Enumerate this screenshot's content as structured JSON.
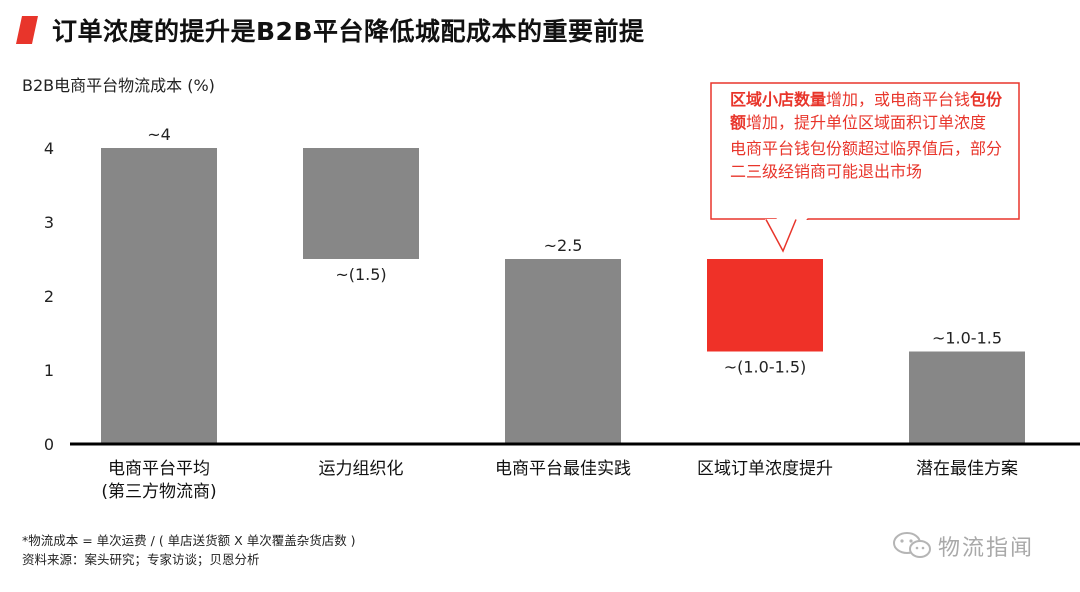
{
  "header": {
    "title": "订单浓度的提升是B2B平台降低城配成本的重要前提"
  },
  "callout": {
    "line1_highlight": "区域小店数量",
    "line1_rest": "增加，或电商平台钱",
    "line2_highlight": "包份额",
    "line2_rest": "增加，提升单位区域面积订单浓度",
    "paragraph2": "电商平台钱包份额超过临界值后，部分二三级经销商可能退出市场"
  },
  "footnotes": {
    "definition": "*物流成本 = 单次运费 / ( 单店送货额 X 单次覆盖杂货店数 )",
    "source": "资料来源：案头研究；专家访谈；贝恩分析"
  },
  "watermark": {
    "text": "物流指闻"
  },
  "colors": {
    "bar_gray": "#878787",
    "bar_highlight": "#ef3128",
    "accent_red": "#e8352b",
    "axis": "#000000"
  },
  "chart_data": {
    "type": "bar",
    "subtype": "waterfall",
    "ylabel": "B2B电商平台物流成本 (%)",
    "ylim": [
      0,
      4
    ],
    "yticks": [
      "0",
      "1",
      "2",
      "3",
      "4"
    ],
    "grid": false,
    "categories": [
      [
        "电商平台平均",
        "(第三方物流商)"
      ],
      [
        "运力组织化"
      ],
      [
        "电商平台最佳实践"
      ],
      [
        "区域订单浓度提升"
      ],
      [
        "潜在最佳方案"
      ]
    ],
    "bars": [
      {
        "bottom": 0,
        "top": 4,
        "label": "~4",
        "label_pos": "above",
        "highlight": false
      },
      {
        "bottom": 2.5,
        "top": 4,
        "label": "~(1.5)",
        "label_pos": "below",
        "highlight": false
      },
      {
        "bottom": 0,
        "top": 2.5,
        "label": "~2.5",
        "label_pos": "above",
        "highlight": false
      },
      {
        "bottom": 1.25,
        "top": 2.5,
        "label": "~(1.0-1.5)",
        "label_pos": "below",
        "highlight": true
      },
      {
        "bottom": 0,
        "top": 1.25,
        "label": "~1.0-1.5",
        "label_pos": "above",
        "highlight": false
      }
    ]
  }
}
